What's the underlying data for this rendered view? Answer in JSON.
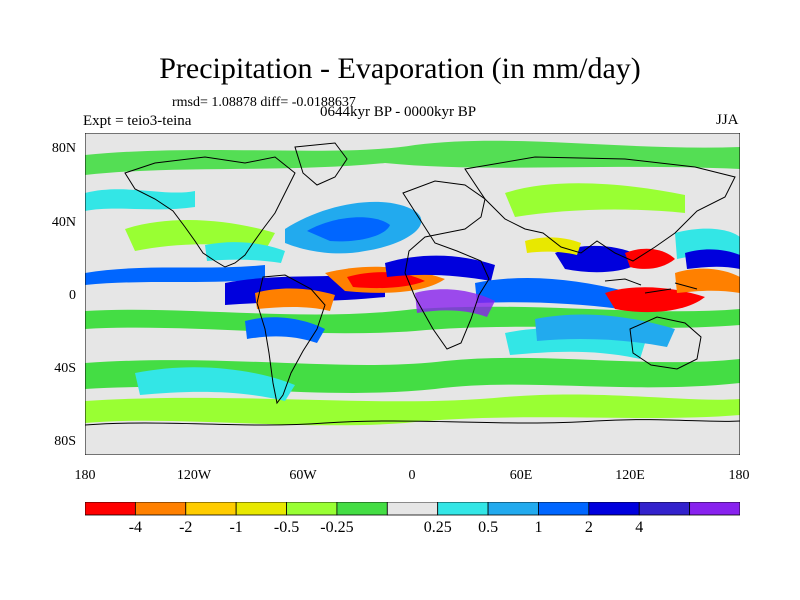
{
  "header": {
    "title": "Precipitation - Evaporation (in mm/day)",
    "stats": "rmsd= 1.08878 diff= -0.0188637",
    "experiment": "Expt = teio3-teina",
    "period": "0644kyr BP - 0000kyr BP",
    "season": "JJA"
  },
  "axes": {
    "lat_ticks": [
      "80N",
      "40N",
      "0",
      "40S",
      "80S"
    ],
    "lon_ticks": [
      "180",
      "120W",
      "60W",
      "0",
      "60E",
      "120E",
      "180"
    ]
  },
  "colorbar": {
    "colors": [
      "#ff0000",
      "#ff8000",
      "#ffcc00",
      "#e8e800",
      "#99ff33",
      "#44dd44",
      "#e6e6e6",
      "#33e6e6",
      "#22aaee",
      "#0066ff",
      "#0000dd",
      "#3322cc",
      "#8822ee"
    ],
    "labels": [
      "-4",
      "-2",
      "-1",
      "-0.5",
      "-0.25",
      "0.25",
      "0.5",
      "1",
      "2",
      "4"
    ]
  }
}
